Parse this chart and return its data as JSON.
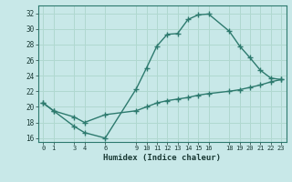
{
  "title": "",
  "xlabel": "Humidex (Indice chaleur)",
  "bg_color": "#c8e8e8",
  "grid_color": "#b0d8d0",
  "line_color": "#2d7a6e",
  "ylim": [
    15.5,
    33
  ],
  "xlim": [
    -0.5,
    23.5
  ],
  "line1_x": [
    0,
    1,
    3,
    4,
    6,
    9,
    10,
    11,
    12,
    13,
    14,
    15,
    16,
    18,
    19,
    20,
    21,
    22,
    23
  ],
  "line1_y": [
    20.5,
    19.5,
    17.5,
    16.7,
    16.0,
    22.3,
    25.0,
    27.8,
    29.3,
    29.4,
    31.2,
    31.8,
    31.9,
    29.7,
    27.8,
    26.3,
    24.7,
    23.7,
    23.5
  ],
  "line2_x": [
    0,
    1,
    3,
    4,
    6,
    9,
    10,
    11,
    12,
    13,
    14,
    15,
    16,
    18,
    19,
    20,
    21,
    22,
    23
  ],
  "line2_y": [
    20.5,
    19.5,
    18.7,
    18.0,
    19.0,
    19.5,
    20.0,
    20.5,
    20.8,
    21.0,
    21.2,
    21.5,
    21.7,
    22.0,
    22.2,
    22.5,
    22.8,
    23.2,
    23.5
  ],
  "yticks": [
    16,
    18,
    20,
    22,
    24,
    26,
    28,
    30,
    32
  ],
  "xtick_positions": [
    0,
    1,
    3,
    4,
    6,
    9,
    10,
    11,
    12,
    13,
    14,
    15,
    16,
    18,
    19,
    20,
    21,
    22,
    23
  ],
  "xtick_labels": [
    "0",
    "1",
    "3",
    "4",
    "6",
    "9",
    "10",
    "11",
    "12",
    "13",
    "14",
    "15",
    "16",
    "18",
    "19",
    "20",
    "21",
    "22",
    "23"
  ]
}
